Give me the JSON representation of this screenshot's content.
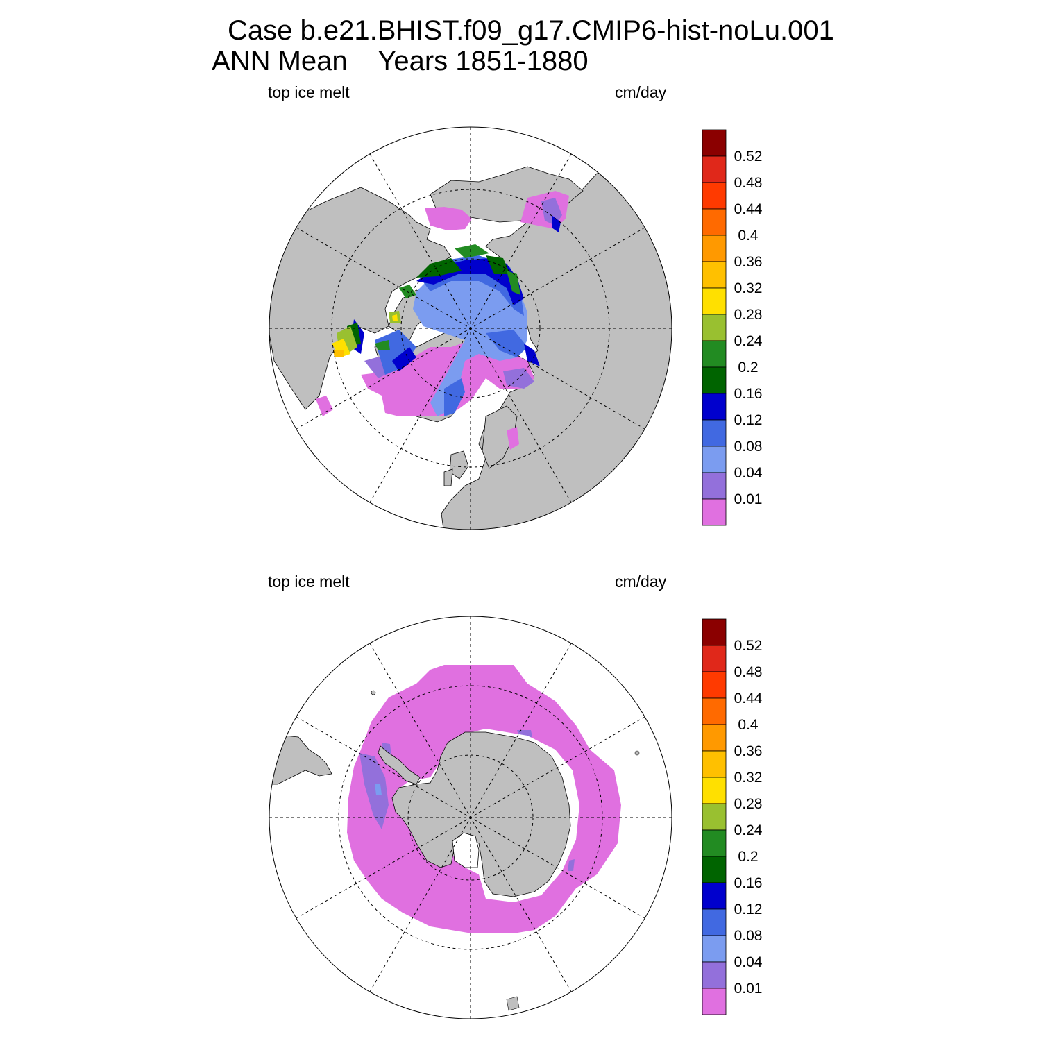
{
  "header": {
    "title_line1": "Case b.e21.BHIST.f09_g17.CMIP6-hist-noLu.001",
    "title_line2": "ANN Mean    Years 1851-1880"
  },
  "panels": [
    {
      "name": "north",
      "left_label": "top ice melt",
      "right_label": "cm/day"
    },
    {
      "name": "south",
      "left_label": "top ice melt",
      "right_label": "cm/day"
    }
  ],
  "colorbar": {
    "labels": [
      "0.52",
      "0.48",
      "0.44",
      "0.4",
      "0.36",
      "0.32",
      "0.28",
      "0.24",
      "0.2",
      "0.16",
      "0.12",
      "0.08",
      "0.04",
      "0.01"
    ],
    "colors_top_to_bottom": [
      "#8b0000",
      "#e0281a",
      "#ff3a00",
      "#ff6a00",
      "#ff9900",
      "#ffc000",
      "#ffe000",
      "#99c030",
      "#228b22",
      "#006400",
      "#0000cd",
      "#4169e1",
      "#7b9cf0",
      "#9370db",
      "#e070e0"
    ]
  },
  "map_colors": {
    "land": "#bfbfbf",
    "ocean": "#ffffff"
  }
}
